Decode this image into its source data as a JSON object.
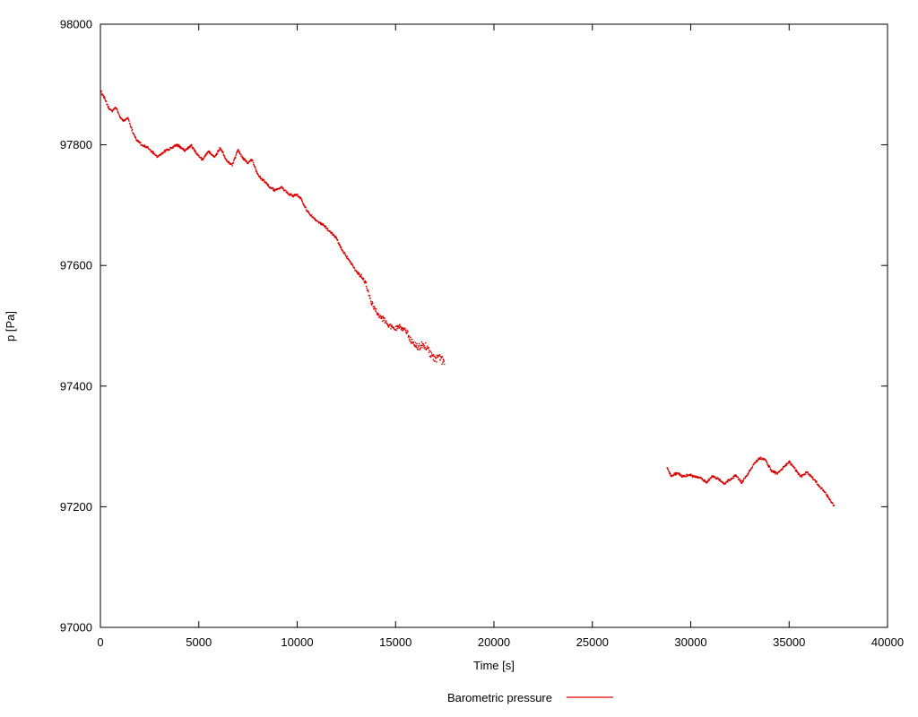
{
  "chart_data": {
    "type": "scatter",
    "title": "",
    "xlabel": "Time [s]",
    "ylabel": "p [Pa]",
    "xlim": [
      0,
      40000
    ],
    "ylim": [
      97000,
      98000
    ],
    "xticks": [
      0,
      5000,
      10000,
      15000,
      20000,
      25000,
      30000,
      35000,
      40000
    ],
    "yticks": [
      97000,
      97200,
      97400,
      97600,
      97800,
      98000
    ],
    "grid": false,
    "legend_label": "Barometric pressure",
    "legend_position": "bottom-center",
    "series_color": "#dd0000",
    "background_color": "#ffffff",
    "axis_color": "#000000",
    "sample_step": 20,
    "series": [
      {
        "name": "Barometric pressure",
        "noise": [
          {
            "from": 0,
            "to": 13200,
            "amp": 2.5
          },
          {
            "from": 13200,
            "to": 15400,
            "amp": 5
          },
          {
            "from": 15400,
            "to": 17600,
            "amp": 8
          }
        ],
        "points": [
          [
            30,
            97888
          ],
          [
            200,
            97878
          ],
          [
            400,
            97862
          ],
          [
            600,
            97856
          ],
          [
            800,
            97862
          ],
          [
            1000,
            97845
          ],
          [
            1200,
            97840
          ],
          [
            1400,
            97845
          ],
          [
            1600,
            97825
          ],
          [
            1800,
            97810
          ],
          [
            2100,
            97800
          ],
          [
            2400,
            97795
          ],
          [
            2700,
            97786
          ],
          [
            2900,
            97780
          ],
          [
            3300,
            97790
          ],
          [
            3600,
            97795
          ],
          [
            3900,
            97800
          ],
          [
            4100,
            97795
          ],
          [
            4300,
            97790
          ],
          [
            4600,
            97800
          ],
          [
            4900,
            97785
          ],
          [
            5200,
            97775
          ],
          [
            5500,
            97790
          ],
          [
            5800,
            97780
          ],
          [
            6100,
            97795
          ],
          [
            6400,
            97775
          ],
          [
            6700,
            97766
          ],
          [
            7000,
            97793
          ],
          [
            7200,
            97780
          ],
          [
            7500,
            97770
          ],
          [
            7700,
            97776
          ],
          [
            8000,
            97750
          ],
          [
            8300,
            97740
          ],
          [
            8600,
            97730
          ],
          [
            8900,
            97724
          ],
          [
            9200,
            97730
          ],
          [
            9500,
            97720
          ],
          [
            9800,
            97715
          ],
          [
            10000,
            97718
          ],
          [
            10200,
            97710
          ],
          [
            10500,
            97690
          ],
          [
            10800,
            97680
          ],
          [
            11100,
            97672
          ],
          [
            11400,
            97665
          ],
          [
            11700,
            97655
          ],
          [
            12000,
            97645
          ],
          [
            12200,
            97630
          ],
          [
            12500,
            97615
          ],
          [
            12800,
            97600
          ],
          [
            13000,
            97590
          ],
          [
            13300,
            97580
          ],
          [
            13500,
            97570
          ],
          [
            13700,
            97545
          ],
          [
            13900,
            97530
          ],
          [
            14100,
            97520
          ],
          [
            14400,
            97510
          ],
          [
            14700,
            97500
          ],
          [
            15000,
            97495
          ],
          [
            15200,
            97500
          ],
          [
            15500,
            97490
          ],
          [
            15800,
            97475
          ],
          [
            16100,
            97463
          ],
          [
            16400,
            97470
          ],
          [
            16700,
            97458
          ],
          [
            17000,
            97443
          ],
          [
            17200,
            97450
          ],
          [
            17500,
            97438
          ]
        ]
      },
      {
        "name": "Barometric pressure",
        "noise": [
          {
            "from": 28700,
            "to": 37400,
            "amp": 2.5
          }
        ],
        "points": [
          [
            28800,
            97266
          ],
          [
            29000,
            97250
          ],
          [
            29300,
            97256
          ],
          [
            29600,
            97250
          ],
          [
            29900,
            97253
          ],
          [
            30200,
            97250
          ],
          [
            30500,
            97248
          ],
          [
            30800,
            97240
          ],
          [
            31100,
            97250
          ],
          [
            31400,
            97246
          ],
          [
            31700,
            97238
          ],
          [
            32000,
            97245
          ],
          [
            32300,
            97252
          ],
          [
            32600,
            97240
          ],
          [
            32900,
            97255
          ],
          [
            33200,
            97270
          ],
          [
            33500,
            97281
          ],
          [
            33800,
            97278
          ],
          [
            34100,
            97260
          ],
          [
            34400,
            97255
          ],
          [
            34700,
            97265
          ],
          [
            35000,
            97275
          ],
          [
            35300,
            97262
          ],
          [
            35600,
            97250
          ],
          [
            35900,
            97258
          ],
          [
            36200,
            97248
          ],
          [
            36500,
            97235
          ],
          [
            36800,
            97225
          ],
          [
            37100,
            97210
          ],
          [
            37300,
            97200
          ]
        ]
      }
    ]
  }
}
